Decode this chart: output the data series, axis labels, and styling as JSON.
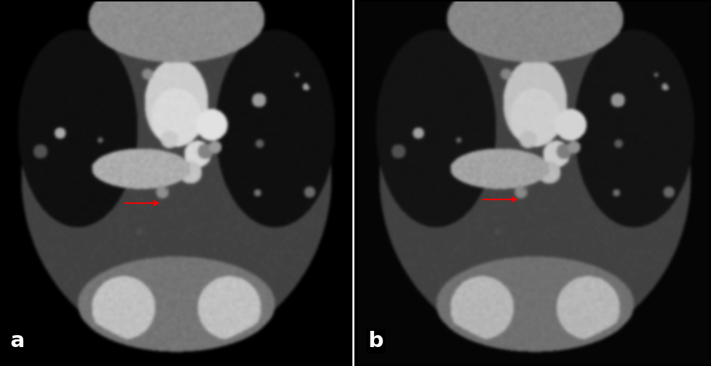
{
  "fig_width": 10.11,
  "fig_height": 5.21,
  "dpi": 100,
  "background_color": "#000000",
  "panel_a_label": "a",
  "panel_b_label": "b",
  "label_color": "#ffffff",
  "label_fontsize": 22,
  "label_fontweight": "bold",
  "arrow_color": "#ff0000",
  "divider_color": "#ffffff",
  "divider_linewidth": 2,
  "outer_border_color": "#000000",
  "outer_border_linewidth": 3
}
